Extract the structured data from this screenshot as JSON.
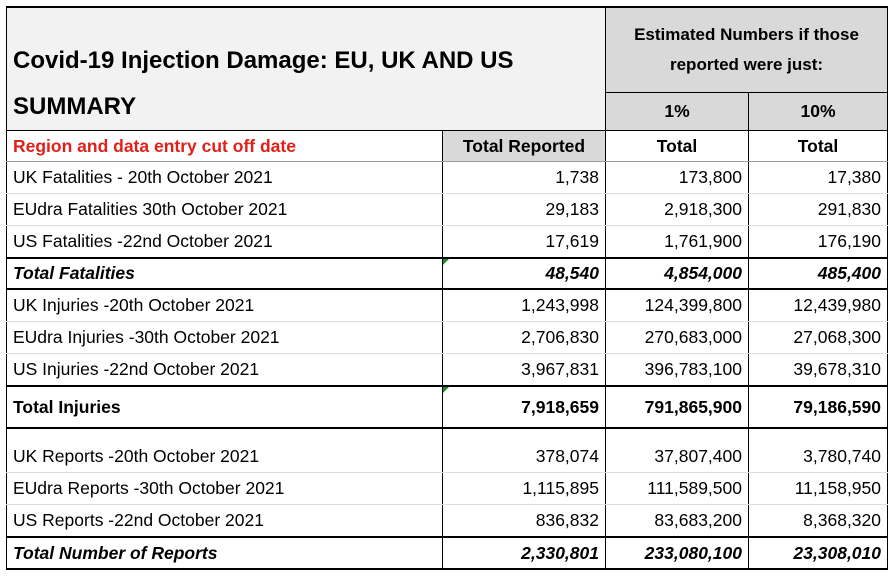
{
  "title": {
    "line1": "Covid-19 Injection Damage: EU, UK AND US",
    "line2": "SUMMARY"
  },
  "estimate_header": {
    "line1": "Estimated Numbers if those",
    "line2": "reported were just:",
    "pct1": "1%",
    "pct2": "10%"
  },
  "column_headers": {
    "region": "Region and data entry cut off date",
    "total_reported": "Total Reported",
    "total_1": "Total",
    "total_10": "Total"
  },
  "colors": {
    "header_red": "#e0201b",
    "gray_fill": "#d9d9d9",
    "title_fill": "#f2f2f2"
  },
  "fatalities": {
    "rows": [
      {
        "label": "UK Fatalities - 20th October 2021",
        "reported": "1,738",
        "pct1": "173,800",
        "pct10": "17,380"
      },
      {
        "label": "EUdra Fatalities  30th October 2021",
        "reported": "29,183",
        "pct1": "2,918,300",
        "pct10": "291,830"
      },
      {
        "label": "US Fatalities -22nd October 2021",
        "reported": "17,619",
        "pct1": "1,761,900",
        "pct10": "176,190"
      }
    ],
    "total": {
      "label": "Total Fatalities",
      "reported": "48,540",
      "pct1": "4,854,000",
      "pct10": "485,400"
    }
  },
  "injuries": {
    "rows": [
      {
        "label": "UK Injuries -20th October 2021",
        "reported": "1,243,998",
        "pct1": "124,399,800",
        "pct10": "12,439,980"
      },
      {
        "label": "EUdra Injuries -30th October 2021",
        "reported": "2,706,830",
        "pct1": "270,683,000",
        "pct10": "27,068,300"
      },
      {
        "label": "US Injuries -22nd October 2021",
        "reported": "3,967,831",
        "pct1": "396,783,100",
        "pct10": "39,678,310"
      }
    ],
    "total": {
      "label": "Total Injuries",
      "reported": "7,918,659",
      "pct1": "791,865,900",
      "pct10": "79,186,590"
    }
  },
  "reports": {
    "rows": [
      {
        "label": "UK Reports -20th October 2021",
        "reported": "378,074",
        "pct1": "37,807,400",
        "pct10": "3,780,740"
      },
      {
        "label": "EUdra Reports -30th October 2021",
        "reported": "1,115,895",
        "pct1": "111,589,500",
        "pct10": "11,158,950"
      },
      {
        "label": "US Reports -22nd October 2021",
        "reported": "836,832",
        "pct1": "83,683,200",
        "pct10": "8,368,320"
      }
    ],
    "total": {
      "label": "Total Number of Reports",
      "reported": "2,330,801",
      "pct1": "233,080,100",
      "pct10": "23,308,010"
    }
  }
}
